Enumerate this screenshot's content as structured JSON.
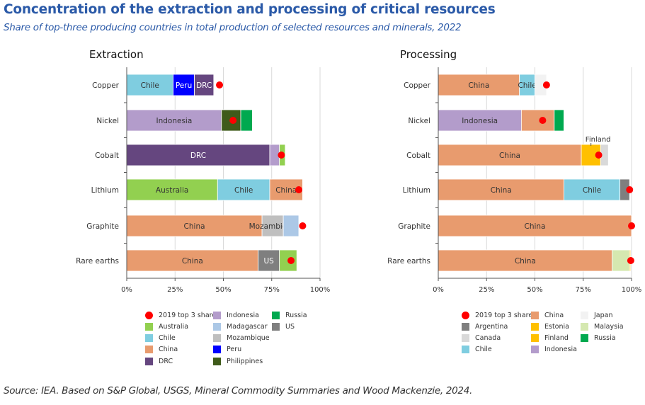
{
  "title": "Concentration of the extraction and processing of critical resources",
  "subtitle": "Share of top-three producing countries in total production of selected resources and minerals, 2022",
  "source": "Source: IEA. Based on S&P Global, USGS, Mineral Commodity Summaries and Wood Mackenzie, 2024.",
  "colors": {
    "Australia": "#92d050",
    "Chile": "#7fcde0",
    "China": "#e89b6e",
    "DRC": "#65467f",
    "Indonesia": "#b39ccb",
    "Madagascar": "#acc8e6",
    "Mozambique": "#bfbfbf",
    "Peru": "#0000ff",
    "Philippines": "#3f5b1a",
    "Russia": "#00a94f",
    "US": "#7f7f7f",
    "Argentina": "#7f7f7f",
    "Canada": "#d9d9d9",
    "Estonia": "#ffc000",
    "Finland": "#ffc000",
    "Japan": "#f2f2f2",
    "Malaysia": "#d5e8b0",
    "dot": "#ff0000"
  },
  "chart_data": [
    {
      "type": "bar",
      "stacked": true,
      "orientation": "horizontal",
      "title": "Extraction",
      "categories": [
        "Copper",
        "Nickel",
        "Cobalt",
        "Lithium",
        "Graphite",
        "Rare earths"
      ],
      "xlim": [
        0,
        100
      ],
      "xticks": [
        "0%",
        "25%",
        "50%",
        "75%",
        "100%"
      ],
      "grid": true,
      "rows": [
        {
          "segments": [
            {
              "country": "Chile",
              "value": 24,
              "label": "Chile"
            },
            {
              "country": "Peru",
              "value": 11,
              "label": "Peru"
            },
            {
              "country": "DRC",
              "value": 10,
              "label": "DRC"
            }
          ],
          "share_2019": 48
        },
        {
          "segments": [
            {
              "country": "Indonesia",
              "value": 49,
              "label": "Indonesia"
            },
            {
              "country": "Philippines",
              "value": 10
            },
            {
              "country": "Russia",
              "value": 6
            }
          ],
          "share_2019": 55
        },
        {
          "segments": [
            {
              "country": "DRC",
              "value": 74,
              "label": "DRC"
            },
            {
              "country": "Indonesia",
              "value": 5
            },
            {
              "country": "Australia",
              "value": 3
            }
          ],
          "share_2019": 80
        },
        {
          "segments": [
            {
              "country": "Australia",
              "value": 47,
              "label": "Australia"
            },
            {
              "country": "Chile",
              "value": 27,
              "label": "Chile"
            },
            {
              "country": "China",
              "value": 17,
              "label": "China"
            }
          ],
          "share_2019": 89
        },
        {
          "segments": [
            {
              "country": "China",
              "value": 70,
              "label": "China"
            },
            {
              "country": "Mozambique",
              "value": 11,
              "label": "Mozambique"
            },
            {
              "country": "Madagascar",
              "value": 8
            }
          ],
          "share_2019": 91
        },
        {
          "segments": [
            {
              "country": "China",
              "value": 68,
              "label": "China"
            },
            {
              "country": "US",
              "value": 11,
              "label": "US"
            },
            {
              "country": "Australia",
              "value": 9
            }
          ],
          "share_2019": 85
        }
      ],
      "legend": [
        [
          "2019 top 3 share",
          "Australia",
          "Chile",
          "China",
          "DRC"
        ],
        [
          "Indonesia",
          "Madagascar",
          "Mozambique",
          "Peru",
          "Philippines"
        ],
        [
          "Russia",
          "US"
        ]
      ],
      "legend_position": "bottom"
    },
    {
      "type": "bar",
      "stacked": true,
      "orientation": "horizontal",
      "title": "Processing",
      "categories": [
        "Copper",
        "Nickel",
        "Cobalt",
        "Lithium",
        "Graphite",
        "Rare earths"
      ],
      "xlim": [
        0,
        100
      ],
      "xticks": [
        "0%",
        "25%",
        "50%",
        "75%",
        "100%"
      ],
      "grid": true,
      "annotation": "Finland",
      "rows": [
        {
          "segments": [
            {
              "country": "China",
              "value": 42,
              "label": "China"
            },
            {
              "country": "Chile",
              "value": 8,
              "label": "Chile"
            },
            {
              "country": "Japan",
              "value": 6
            }
          ],
          "share_2019": 56
        },
        {
          "segments": [
            {
              "country": "Indonesia",
              "value": 43,
              "label": "Indonesia"
            },
            {
              "country": "China",
              "value": 17
            },
            {
              "country": "Russia",
              "value": 5
            }
          ],
          "share_2019": 54
        },
        {
          "segments": [
            {
              "country": "China",
              "value": 74,
              "label": "China"
            },
            {
              "country": "Finland",
              "value": 10
            },
            {
              "country": "Canada",
              "value": 4
            }
          ],
          "share_2019": 83
        },
        {
          "segments": [
            {
              "country": "China",
              "value": 65,
              "label": "China"
            },
            {
              "country": "Chile",
              "value": 29,
              "label": "Chile"
            },
            {
              "country": "Argentina",
              "value": 5
            }
          ],
          "share_2019": 99
        },
        {
          "segments": [
            {
              "country": "China",
              "value": 100,
              "label": "China"
            }
          ],
          "share_2019": 100
        },
        {
          "segments": [
            {
              "country": "China",
              "value": 90,
              "label": "China"
            },
            {
              "country": "Malaysia",
              "value": 9
            },
            {
              "country": "Estonia",
              "value": 0.5
            }
          ],
          "share_2019": 99.6
        }
      ],
      "legend": [
        [
          "2019 top 3 share",
          "Argentina",
          "Canada",
          "Chile"
        ],
        [
          "China",
          "Estonia",
          "Finland",
          "Indonesia"
        ],
        [
          "Japan",
          "Malaysia",
          "Russia"
        ]
      ],
      "legend_position": "bottom"
    }
  ]
}
